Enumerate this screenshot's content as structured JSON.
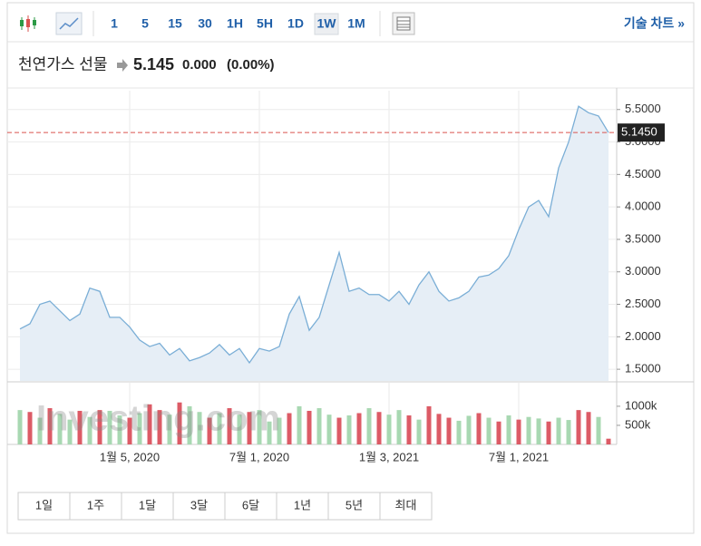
{
  "toolbar": {
    "intervals": [
      "1",
      "5",
      "15",
      "30",
      "1H",
      "5H",
      "1D",
      "1W",
      "1M"
    ],
    "active": 7,
    "link": "기술 차트 »"
  },
  "header": {
    "name": "천연가스 선물",
    "price": "5.145",
    "change": "0.000",
    "change_pct": "(0.00%)"
  },
  "watermark": "Investing.com",
  "ranges": [
    "1일",
    "1주",
    "1달",
    "3달",
    "6달",
    "1년",
    "5년",
    "최대"
  ],
  "chart_data": [
    {
      "type": "line",
      "color": "#7aaed6",
      "fill": "#e6eef6",
      "categories": [
        null,
        null,
        null,
        null,
        null,
        null,
        null,
        null,
        null,
        null,
        null,
        "1월 5, 2020",
        null,
        null,
        null,
        null,
        null,
        null,
        null,
        null,
        null,
        null,
        null,
        null,
        "7월 1, 2020",
        null,
        null,
        null,
        null,
        null,
        null,
        null,
        null,
        null,
        null,
        null,
        null,
        "1월 3, 2021",
        null,
        null,
        null,
        null,
        null,
        null,
        null,
        null,
        null,
        null,
        null,
        null,
        "7월 1, 2021",
        null,
        null,
        null,
        null,
        null,
        null,
        null,
        null,
        null
      ],
      "values": [
        2.12,
        2.2,
        2.5,
        2.55,
        2.4,
        2.25,
        2.35,
        2.75,
        2.7,
        2.3,
        2.3,
        2.15,
        1.95,
        1.85,
        1.9,
        1.72,
        1.82,
        1.63,
        1.68,
        1.75,
        1.88,
        1.72,
        1.82,
        1.6,
        1.82,
        1.78,
        1.85,
        2.35,
        2.62,
        2.1,
        2.3,
        2.8,
        3.3,
        2.7,
        2.75,
        2.65,
        2.65,
        2.55,
        2.7,
        2.5,
        2.8,
        3.0,
        2.7,
        2.55,
        2.6,
        2.7,
        2.92,
        2.95,
        3.05,
        3.25,
        3.65,
        4.0,
        4.1,
        3.85,
        4.6,
        5.0,
        5.55,
        5.45,
        5.4,
        5.145
      ],
      "ylim": [
        1.32,
        5.79
      ],
      "yticks": [
        {
          "value": 1.5,
          "label": "1.5000"
        },
        {
          "value": 2,
          "label": "2.0000"
        },
        {
          "value": 2.5,
          "label": "2.5000"
        },
        {
          "value": 3,
          "label": "3.0000"
        },
        {
          "value": 3.5,
          "label": "3.5000"
        },
        {
          "value": 4,
          "label": "4.0000"
        },
        {
          "value": 4.5,
          "label": "4.5000"
        },
        {
          "value": 5,
          "label": "5.0000"
        },
        {
          "value": 5.5,
          "label": "5.5000"
        }
      ],
      "current": {
        "value": 5.145,
        "label": "5.1450",
        "color": "#d9534f"
      },
      "grid": true
    },
    {
      "type": "bar",
      "up_color": "#a8d8b2",
      "down_color": "#dc5b66",
      "values": [
        900000,
        850000,
        700000,
        950000,
        800000,
        650000,
        880000,
        720000,
        900000,
        880000,
        760000,
        700000,
        820000,
        1050000,
        900000,
        780000,
        1100000,
        1000000,
        850000,
        700000,
        820000,
        950000,
        780000,
        850000,
        900000,
        600000,
        700000,
        820000,
        1000000,
        880000,
        950000,
        780000,
        700000,
        760000,
        820000,
        950000,
        850000,
        780000,
        900000,
        760000,
        650000,
        1000000,
        800000,
        700000,
        620000,
        750000,
        820000,
        700000,
        600000,
        760000,
        650000,
        720000,
        680000,
        600000,
        700000,
        640000,
        900000,
        850000,
        720000,
        150000
      ],
      "up": [
        true,
        false,
        true,
        false,
        true,
        true,
        false,
        true,
        false,
        true,
        true,
        false,
        true,
        false,
        false,
        true,
        false,
        true,
        true,
        false,
        true,
        false,
        true,
        false,
        true,
        true,
        true,
        false,
        true,
        false,
        true,
        true,
        false,
        true,
        false,
        true,
        false,
        true,
        true,
        false,
        true,
        false,
        false,
        false,
        true,
        true,
        false,
        true,
        false,
        true,
        false,
        true,
        true,
        false,
        true,
        true,
        false,
        false,
        true,
        false
      ],
      "ylim": [
        0,
        1640000
      ],
      "yticks": [
        {
          "value": 500000,
          "label": "500k"
        },
        {
          "value": 1000000,
          "label": "1000k"
        }
      ]
    }
  ]
}
